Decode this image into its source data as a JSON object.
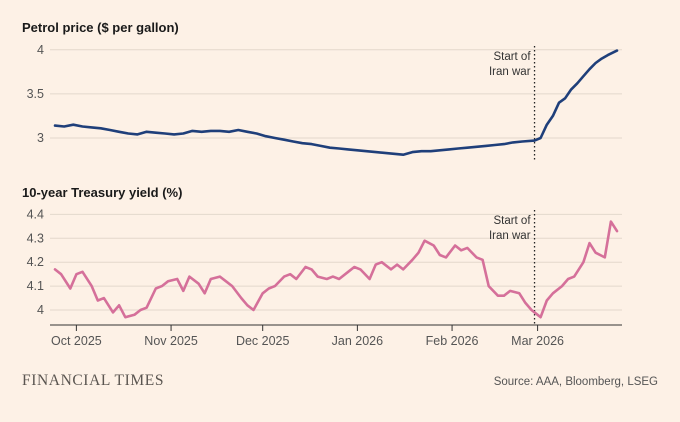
{
  "chart_data": [
    {
      "type": "line",
      "title": "Petrol price ($ per gallon)",
      "ylim": [
        2.75,
        4.02
      ],
      "yticks": [
        "4",
        "3.5",
        "3"
      ],
      "ytick_values": [
        4,
        3.5,
        3
      ],
      "annotation": {
        "lines": [
          "Start of",
          "Iran war"
        ],
        "date": "2026-02-28"
      },
      "color": "#1f3f7a",
      "series": [
        {
          "x": [
            "2025-09-24",
            "2025-09-27",
            "2025-09-30",
            "2025-10-03",
            "2025-10-06",
            "2025-10-09",
            "2025-10-12",
            "2025-10-15",
            "2025-10-18",
            "2025-10-21",
            "2025-10-24",
            "2025-10-27",
            "2025-10-30",
            "2025-11-02",
            "2025-11-05",
            "2025-11-08",
            "2025-11-11",
            "2025-11-14",
            "2025-11-17",
            "2025-11-20",
            "2025-11-23",
            "2025-11-26",
            "2025-11-29",
            "2025-12-02",
            "2025-12-05",
            "2025-12-08",
            "2025-12-11",
            "2025-12-14",
            "2025-12-17",
            "2025-12-20",
            "2025-12-23",
            "2025-12-26",
            "2025-12-29",
            "2026-01-01",
            "2026-01-04",
            "2026-01-07",
            "2026-01-10",
            "2026-01-13",
            "2026-01-16",
            "2026-01-19",
            "2026-01-22",
            "2026-01-25",
            "2026-01-28",
            "2026-01-31",
            "2026-02-03",
            "2026-02-06",
            "2026-02-09",
            "2026-02-12",
            "2026-02-15",
            "2026-02-18",
            "2026-02-21",
            "2026-02-24",
            "2026-02-28",
            "2026-03-02",
            "2026-03-04",
            "2026-03-06",
            "2026-03-08",
            "2026-03-10",
            "2026-03-12",
            "2026-03-14",
            "2026-03-16",
            "2026-03-18",
            "2026-03-20",
            "2026-03-22",
            "2026-03-24",
            "2026-03-27"
          ],
          "values": [
            3.14,
            3.13,
            3.15,
            3.13,
            3.12,
            3.11,
            3.09,
            3.07,
            3.05,
            3.04,
            3.07,
            3.06,
            3.05,
            3.04,
            3.05,
            3.08,
            3.07,
            3.08,
            3.08,
            3.07,
            3.09,
            3.07,
            3.05,
            3.02,
            3.0,
            2.98,
            2.96,
            2.94,
            2.93,
            2.91,
            2.89,
            2.88,
            2.87,
            2.86,
            2.85,
            2.84,
            2.83,
            2.82,
            2.81,
            2.84,
            2.85,
            2.85,
            2.86,
            2.87,
            2.88,
            2.89,
            2.9,
            2.91,
            2.92,
            2.93,
            2.95,
            2.96,
            2.97,
            3.0,
            3.15,
            3.25,
            3.4,
            3.45,
            3.55,
            3.62,
            3.7,
            3.78,
            3.85,
            3.9,
            3.94,
            3.99
          ]
        }
      ]
    },
    {
      "type": "line",
      "title": "10-year Treasury yield (%)",
      "ylim": [
        3.95,
        4.41
      ],
      "yticks": [
        "4.4",
        "4.3",
        "4.2",
        "4.1",
        "4"
      ],
      "ytick_values": [
        4.4,
        4.3,
        4.2,
        4.1,
        4.0
      ],
      "annotation": {
        "lines": [
          "Start of",
          "Iran war"
        ],
        "date": "2026-02-28"
      },
      "color": "#d5709a",
      "series": [
        {
          "x": [
            "2025-09-24",
            "2025-09-26",
            "2025-09-29",
            "2025-10-01",
            "2025-10-03",
            "2025-10-06",
            "2025-10-08",
            "2025-10-10",
            "2025-10-13",
            "2025-10-15",
            "2025-10-17",
            "2025-10-20",
            "2025-10-22",
            "2025-10-24",
            "2025-10-27",
            "2025-10-29",
            "2025-10-31",
            "2025-11-03",
            "2025-11-05",
            "2025-11-07",
            "2025-11-10",
            "2025-11-12",
            "2025-11-14",
            "2025-11-17",
            "2025-11-19",
            "2025-11-21",
            "2025-11-24",
            "2025-11-26",
            "2025-11-28",
            "2025-12-01",
            "2025-12-03",
            "2025-12-05",
            "2025-12-08",
            "2025-12-10",
            "2025-12-12",
            "2025-12-15",
            "2025-12-17",
            "2025-12-19",
            "2025-12-22",
            "2025-12-24",
            "2025-12-26",
            "2025-12-29",
            "2025-12-31",
            "2026-01-02",
            "2026-01-05",
            "2026-01-07",
            "2026-01-09",
            "2026-01-12",
            "2026-01-14",
            "2026-01-16",
            "2026-01-19",
            "2026-01-21",
            "2026-01-23",
            "2026-01-26",
            "2026-01-28",
            "2026-01-30",
            "2026-02-02",
            "2026-02-04",
            "2026-02-06",
            "2026-02-09",
            "2026-02-11",
            "2026-02-13",
            "2026-02-16",
            "2026-02-18",
            "2026-02-20",
            "2026-02-23",
            "2026-02-25",
            "2026-02-27",
            "2026-03-02",
            "2026-03-04",
            "2026-03-06",
            "2026-03-09",
            "2026-03-11",
            "2026-03-13",
            "2026-03-16",
            "2026-03-18",
            "2026-03-20",
            "2026-03-23",
            "2026-03-25",
            "2026-03-27"
          ],
          "values": [
            4.17,
            4.15,
            4.09,
            4.15,
            4.16,
            4.1,
            4.04,
            4.05,
            3.99,
            4.02,
            3.97,
            3.98,
            4.0,
            4.01,
            4.09,
            4.1,
            4.12,
            4.13,
            4.08,
            4.14,
            4.11,
            4.07,
            4.13,
            4.14,
            4.12,
            4.1,
            4.05,
            4.02,
            4.0,
            4.07,
            4.09,
            4.1,
            4.14,
            4.15,
            4.13,
            4.18,
            4.17,
            4.14,
            4.13,
            4.14,
            4.13,
            4.16,
            4.18,
            4.17,
            4.13,
            4.19,
            4.2,
            4.17,
            4.19,
            4.17,
            4.21,
            4.24,
            4.29,
            4.27,
            4.23,
            4.22,
            4.27,
            4.25,
            4.26,
            4.22,
            4.21,
            4.1,
            4.06,
            4.06,
            4.08,
            4.07,
            4.03,
            4.0,
            3.97,
            4.04,
            4.07,
            4.1,
            4.13,
            4.14,
            4.2,
            4.28,
            4.24,
            4.22,
            4.37,
            4.33
          ]
        }
      ]
    }
  ],
  "xaxis": {
    "labels": [
      "Oct 2025",
      "Nov 2025",
      "Dec 2025",
      "Jan 2026",
      "Feb 2026",
      "Mar 2026"
    ],
    "dates": [
      "2025-10-01",
      "2025-11-01",
      "2025-12-01",
      "2026-01-01",
      "2026-02-01",
      "2026-03-01"
    ]
  },
  "footer": {
    "brand": "FINANCIAL TIMES",
    "source": "Source: AAA, Bloomberg, LSEG"
  }
}
